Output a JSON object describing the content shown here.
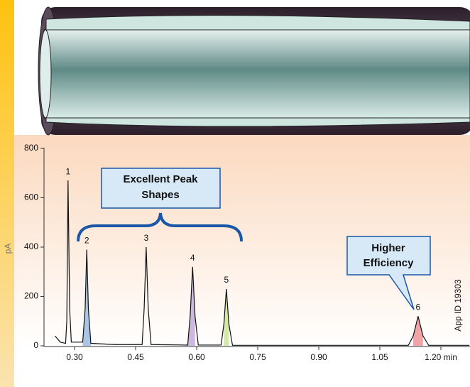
{
  "chart_data": {
    "type": "chromatogram",
    "y_label": "pA",
    "annotations": {
      "left_callout": [
        "Excellent Peak",
        "Shapes"
      ],
      "right_callout": [
        "Higher",
        "Efficiency"
      ],
      "app_id": "App ID 19303"
    },
    "x": [
      0.252,
      0.265,
      0.278,
      0.281,
      0.284,
      0.288,
      0.292,
      0.32,
      0.326,
      0.33,
      0.334,
      0.34,
      0.4,
      0.466,
      0.471,
      0.476,
      0.481,
      0.488,
      0.578,
      0.584,
      0.59,
      0.596,
      0.604,
      0.66,
      0.667,
      0.673,
      0.679,
      0.688,
      1.12,
      1.132,
      1.144,
      1.156,
      1.17,
      1.27
    ],
    "values": [
      40,
      15,
      10,
      100,
      670,
      150,
      15,
      15,
      150,
      390,
      150,
      10,
      5,
      5,
      150,
      400,
      150,
      5,
      3,
      120,
      320,
      120,
      3,
      3,
      90,
      230,
      90,
      2,
      2,
      40,
      120,
      40,
      2,
      2
    ],
    "color": "#111111",
    "peaks": [
      {
        "label": "1",
        "x": 0.284,
        "value": 670
      },
      {
        "label": "2",
        "x": 0.33,
        "value": 390,
        "color": "#a9c6e6"
      },
      {
        "label": "3",
        "x": 0.476,
        "value": 400
      },
      {
        "label": "4",
        "x": 0.59,
        "value": 320,
        "color": "#cdb9de"
      },
      {
        "label": "5",
        "x": 0.673,
        "value": 230,
        "color": "#d3e9a6"
      },
      {
        "label": "6",
        "x": 1.144,
        "value": 120,
        "color": "#f0a4a8"
      }
    ],
    "xlim": [
      0.225,
      1.2715
    ],
    "ylim": [
      0,
      800
    ],
    "xticks": [
      {
        "value": 0.3,
        "label": "0.30"
      },
      {
        "value": 0.45,
        "label": "0.45"
      },
      {
        "value": 0.6,
        "label": "0.60"
      },
      {
        "value": 0.75,
        "label": "0.75"
      },
      {
        "value": 0.9,
        "label": "0.90"
      },
      {
        "value": 1.05,
        "label": "1.05"
      },
      {
        "value": 1.2,
        "label": "1.20 min"
      }
    ],
    "yticks": [
      0,
      200,
      400,
      600,
      800
    ]
  }
}
